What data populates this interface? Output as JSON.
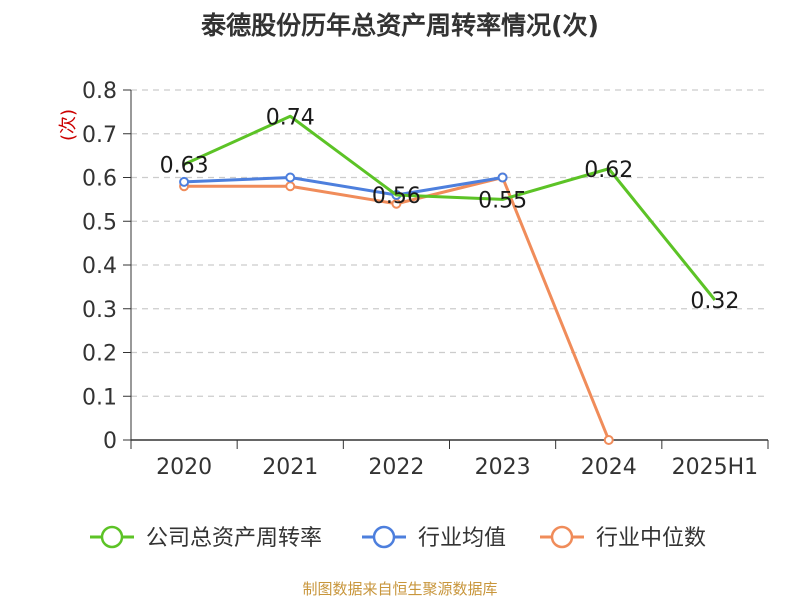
{
  "chart_data": {
    "type": "line",
    "title": "泰德股份历年总资产周转率情况(次)",
    "ylabel": "(次)",
    "xlabel": "",
    "categories": [
      "2020",
      "2021",
      "2022",
      "2023",
      "2024",
      "2025H1"
    ],
    "y_ticks": [
      "0",
      "0.1",
      "0.2",
      "0.3",
      "0.4",
      "0.5",
      "0.6",
      "0.7",
      "0.8"
    ],
    "ylim": [
      0,
      0.8
    ],
    "grid": "horizontal dashed",
    "legend_position": "bottom",
    "series": [
      {
        "name": "公司总资产周转率",
        "color": "#5cc326",
        "values": [
          0.63,
          0.74,
          0.56,
          0.55,
          0.62,
          0.32
        ],
        "labels": [
          "0.63",
          "0.74",
          "0.56",
          "0.55",
          "0.62",
          "0.32"
        ]
      },
      {
        "name": "行业均值",
        "color": "#4d7fdd",
        "values": [
          0.59,
          0.6,
          0.56,
          0.6,
          null,
          null
        ]
      },
      {
        "name": "行业中位数",
        "color": "#f08c5a",
        "values": [
          0.58,
          0.58,
          0.54,
          0.6,
          0.0,
          null
        ]
      }
    ],
    "source": "制图数据来自恒生聚源数据库"
  }
}
